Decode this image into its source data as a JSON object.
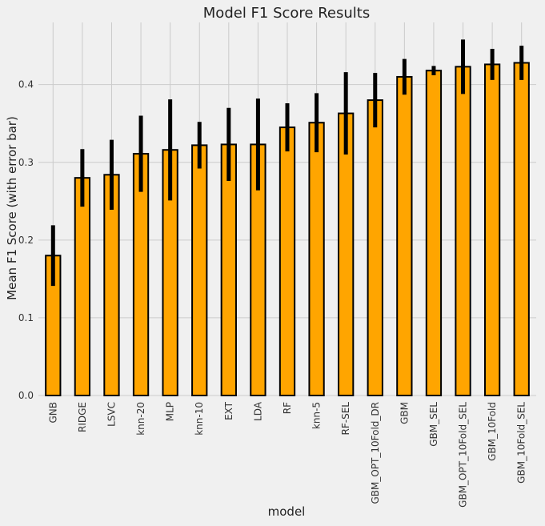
{
  "chart_data": {
    "type": "bar",
    "title": "Model F1 Score Results",
    "xlabel": "model",
    "ylabel": "Mean F1 Score (with error bar)",
    "ylim": [
      0,
      0.48
    ],
    "yticks": [
      "0.0",
      "0.1",
      "0.2",
      "0.3",
      "0.4"
    ],
    "grid": true,
    "categories": [
      "GNB",
      "RIDGE",
      "LSVC",
      "knn-20",
      "MLP",
      "knn-10",
      "EXT",
      "LDA",
      "RF",
      "knn-5",
      "RF-SEL",
      "GBM_OPT_10Fold_DR",
      "GBM",
      "GBM_SEL",
      "GBM_OPT_10Fold_SEL",
      "GBM_10Fold",
      "GBM_10Fold_SEL"
    ],
    "values": [
      0.18,
      0.28,
      0.284,
      0.311,
      0.316,
      0.322,
      0.323,
      0.323,
      0.345,
      0.351,
      0.363,
      0.38,
      0.41,
      0.418,
      0.423,
      0.426,
      0.428
    ],
    "errors": [
      0.039,
      0.037,
      0.045,
      0.049,
      0.065,
      0.03,
      0.047,
      0.059,
      0.031,
      0.038,
      0.053,
      0.035,
      0.023,
      0.006,
      0.035,
      0.02,
      0.022
    ],
    "colors": {
      "bar": "#ffa500",
      "edge": "#000000",
      "error": "#000000",
      "grid": "#cbcbcb",
      "background": "#f0f0f0"
    }
  }
}
